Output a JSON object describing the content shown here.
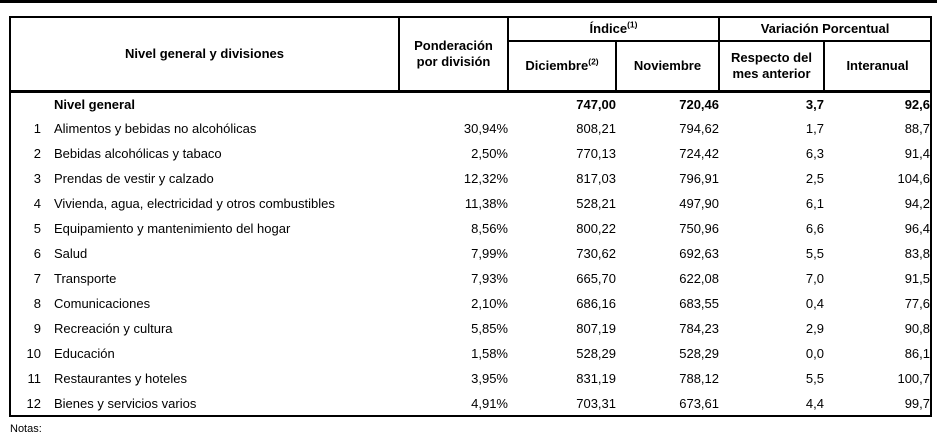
{
  "table": {
    "header": {
      "col_divisions": "Nivel general y divisiones",
      "col_weight": "Ponderación por división",
      "group_index": "Índice",
      "group_index_sup": "(1)",
      "group_variation": "Variación Porcentual",
      "col_december": "Diciembre",
      "col_december_sup": "(2)",
      "col_november": "Noviembre",
      "col_monthly": "Respecto del mes anterior",
      "col_interannual": "Interanual"
    },
    "rows": [
      {
        "num": "",
        "name": "Nivel general",
        "weight": "",
        "december": "747,00",
        "november": "720,46",
        "monthly": "3,7",
        "interannual": "92,6",
        "bold": true
      },
      {
        "num": "1",
        "name": "Alimentos y bebidas no alcohólicas",
        "weight": "30,94%",
        "december": "808,21",
        "november": "794,62",
        "monthly": "1,7",
        "interannual": "88,7",
        "bold": false
      },
      {
        "num": "2",
        "name": "Bebidas alcohólicas y tabaco",
        "weight": "2,50%",
        "december": "770,13",
        "november": "724,42",
        "monthly": "6,3",
        "interannual": "91,4",
        "bold": false
      },
      {
        "num": "3",
        "name": "Prendas de vestir y calzado",
        "weight": "12,32%",
        "december": "817,03",
        "november": "796,91",
        "monthly": "2,5",
        "interannual": "104,6",
        "bold": false
      },
      {
        "num": "4",
        "name": "Vivienda, agua, electricidad y otros combustibles",
        "weight": "11,38%",
        "december": "528,21",
        "november": "497,90",
        "monthly": "6,1",
        "interannual": "94,2",
        "bold": false
      },
      {
        "num": "5",
        "name": "Equipamiento y mantenimiento del hogar",
        "weight": "8,56%",
        "december": "800,22",
        "november": "750,96",
        "monthly": "6,6",
        "interannual": "96,4",
        "bold": false
      },
      {
        "num": "6",
        "name": "Salud",
        "weight": "7,99%",
        "december": "730,62",
        "november": "692,63",
        "monthly": "5,5",
        "interannual": "83,8",
        "bold": false
      },
      {
        "num": "7",
        "name": "Transporte",
        "weight": "7,93%",
        "december": "665,70",
        "november": "622,08",
        "monthly": "7,0",
        "interannual": "91,5",
        "bold": false
      },
      {
        "num": "8",
        "name": "Comunicaciones",
        "weight": "2,10%",
        "december": "686,16",
        "november": "683,55",
        "monthly": "0,4",
        "interannual": "77,6",
        "bold": false
      },
      {
        "num": "9",
        "name": "Recreación y cultura",
        "weight": "5,85%",
        "december": "807,19",
        "november": "784,23",
        "monthly": "2,9",
        "interannual": "90,8",
        "bold": false
      },
      {
        "num": "10",
        "name": "Educación",
        "weight": "1,58%",
        "december": "528,29",
        "november": "528,29",
        "monthly": "0,0",
        "interannual": "86,1",
        "bold": false
      },
      {
        "num": "11",
        "name": "Restaurantes y hoteles",
        "weight": "3,95%",
        "december": "831,19",
        "november": "788,12",
        "monthly": "5,5",
        "interannual": "100,7",
        "bold": false
      },
      {
        "num": "12",
        "name": "Bienes y servicios varios",
        "weight": "4,91%",
        "december": "703,31",
        "november": "673,61",
        "monthly": "4,4",
        "interannual": "99,7",
        "bold": false
      }
    ]
  },
  "notes_label": "Notas:"
}
